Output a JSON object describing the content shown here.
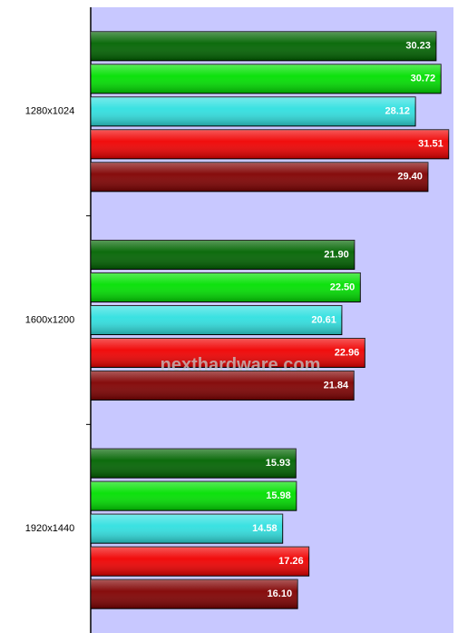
{
  "chart_data": {
    "type": "hbar",
    "categories": [
      "1280x1024",
      "1600x1200",
      "1920x1440"
    ],
    "series": [
      {
        "color": "#006400",
        "values": [
          30.23,
          21.9,
          15.93
        ]
      },
      {
        "color": "#00e000",
        "values": [
          30.72,
          22.5,
          15.98
        ]
      },
      {
        "color": "#30e0e0",
        "values": [
          28.12,
          20.61,
          14.58
        ]
      },
      {
        "color": "#f00000",
        "values": [
          31.51,
          22.96,
          17.26
        ]
      },
      {
        "color": "#800000",
        "values": [
          29.4,
          21.84,
          16.1
        ]
      }
    ],
    "value_labels": [
      [
        "30.23",
        "21.90",
        "15.93"
      ],
      [
        "30.72",
        "22.50",
        "15.98"
      ],
      [
        "28.12",
        "20.61",
        "14.58"
      ],
      [
        "31.51",
        "22.96",
        "17.26"
      ],
      [
        "29.40",
        "21.84",
        "16.10"
      ]
    ],
    "xlim": [
      -5,
      32
    ],
    "watermark": "nexthardware.com"
  }
}
